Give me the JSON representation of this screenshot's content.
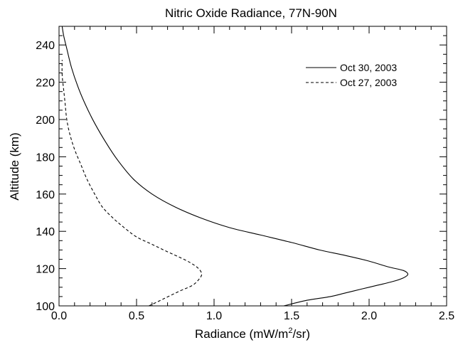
{
  "chart_data": {
    "type": "line",
    "title": "Nitric Oxide Radiance, 77N-90N",
    "xlabel": {
      "main": "Radiance (mW/m",
      "sup": "2",
      "tail": "/sr)"
    },
    "ylabel": "Altitude (km)",
    "xlim": [
      0.0,
      2.5
    ],
    "ylim": [
      100,
      250
    ],
    "x_ticks": [
      0.0,
      0.5,
      1.0,
      1.5,
      2.0,
      2.5
    ],
    "x_tick_labels": [
      "0.0",
      "0.5",
      "1.0",
      "1.5",
      "2.0",
      "2.5"
    ],
    "y_ticks": [
      100,
      120,
      140,
      160,
      180,
      200,
      220,
      240
    ],
    "y_tick_labels": [
      "100",
      "120",
      "140",
      "160",
      "180",
      "200",
      "220",
      "240"
    ],
    "x_minor_step": 0.1,
    "y_minor_step": 5,
    "legend_position": "top-right",
    "grid": false,
    "series": [
      {
        "name": "Oct 30, 2003",
        "style": "solid",
        "points": [
          [
            1.45,
            100
          ],
          [
            1.6,
            103
          ],
          [
            1.75,
            105
          ],
          [
            1.85,
            107
          ],
          [
            1.95,
            109
          ],
          [
            2.05,
            111
          ],
          [
            2.15,
            113
          ],
          [
            2.22,
            115
          ],
          [
            2.25,
            117
          ],
          [
            2.22,
            119
          ],
          [
            2.12,
            121
          ],
          [
            2.0,
            124
          ],
          [
            1.85,
            127
          ],
          [
            1.68,
            130
          ],
          [
            1.5,
            134
          ],
          [
            1.3,
            138
          ],
          [
            1.1,
            142
          ],
          [
            0.92,
            147
          ],
          [
            0.75,
            153
          ],
          [
            0.6,
            160
          ],
          [
            0.48,
            168
          ],
          [
            0.38,
            178
          ],
          [
            0.3,
            188
          ],
          [
            0.23,
            198
          ],
          [
            0.17,
            208
          ],
          [
            0.12,
            218
          ],
          [
            0.08,
            228
          ],
          [
            0.05,
            238
          ],
          [
            0.03,
            245
          ],
          [
            0.02,
            250
          ]
        ]
      },
      {
        "name": "Oct 27, 2003",
        "style": "dashed",
        "points": [
          [
            0.58,
            100
          ],
          [
            0.68,
            104
          ],
          [
            0.78,
            108
          ],
          [
            0.86,
            111
          ],
          [
            0.9,
            114
          ],
          [
            0.92,
            117
          ],
          [
            0.9,
            120
          ],
          [
            0.85,
            123
          ],
          [
            0.78,
            126
          ],
          [
            0.7,
            129
          ],
          [
            0.6,
            133
          ],
          [
            0.5,
            137
          ],
          [
            0.42,
            142
          ],
          [
            0.35,
            147
          ],
          [
            0.28,
            153
          ],
          [
            0.23,
            160
          ],
          [
            0.18,
            168
          ],
          [
            0.14,
            176
          ],
          [
            0.1,
            184
          ],
          [
            0.07,
            192
          ],
          [
            0.05,
            200
          ],
          [
            0.04,
            208
          ],
          [
            0.03,
            216
          ],
          [
            0.02,
            224
          ],
          [
            0.02,
            232
          ]
        ]
      }
    ]
  }
}
